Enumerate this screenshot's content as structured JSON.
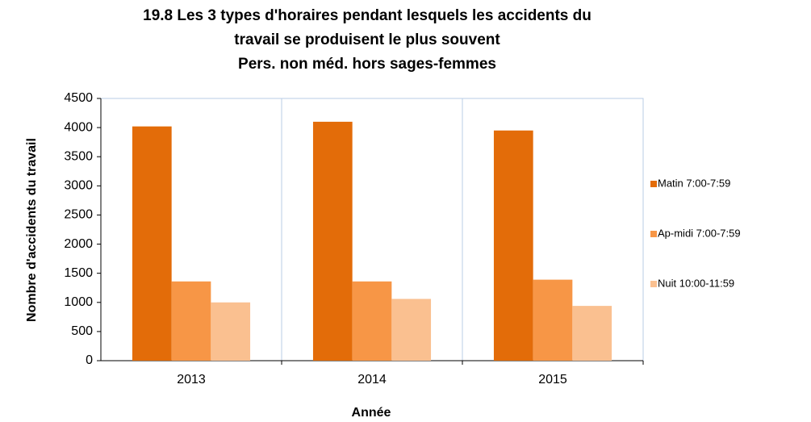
{
  "chart_data": {
    "type": "bar",
    "title": [
      "19.8 Les 3 types d'horaires pendant lesquels les accidents du",
      "travail se produisent le plus souvent"
    ],
    "subtitle": "Pers. non méd. hors sages-femmes",
    "x_label": "Année",
    "y_label": "Nombre d'accidents du travail",
    "categories": [
      "2013",
      "2014",
      "2015"
    ],
    "series": [
      {
        "name": "Matin 7:00-7:59",
        "color": "#e36c09",
        "values": [
          4020,
          4100,
          3950
        ]
      },
      {
        "name": "Ap-midi 7:00-7:59",
        "color": "#f79646",
        "values": [
          1360,
          1360,
          1390
        ]
      },
      {
        "name": "Nuit 10:00-11:59",
        "color": "#fac090",
        "values": [
          1000,
          1060,
          940
        ]
      }
    ],
    "ylim": [
      0,
      4500
    ],
    "yticks": [
      0,
      500,
      1000,
      1500,
      2000,
      2500,
      3000,
      3500,
      4000,
      4500
    ],
    "grid": false,
    "legend": "right"
  }
}
